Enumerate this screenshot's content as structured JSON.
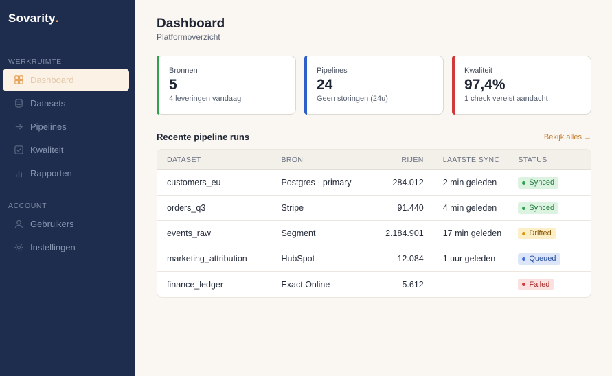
{
  "brand": {
    "name": "Sovarity",
    "dot": "."
  },
  "sidebar": {
    "sections": [
      {
        "label": "WERKRUIMTE"
      },
      {
        "label": "ACCOUNT"
      }
    ],
    "items": [
      {
        "label": "Dashboard",
        "icon": "grid-icon",
        "active": true
      },
      {
        "label": "Datasets",
        "icon": "database-icon"
      },
      {
        "label": "Pipelines",
        "icon": "arrow-right-icon"
      },
      {
        "label": "Kwaliteit",
        "icon": "check-square-icon"
      },
      {
        "label": "Rapporten",
        "icon": "bar-chart-icon"
      },
      {
        "label": "Gebruikers",
        "icon": "user-icon"
      },
      {
        "label": "Instellingen",
        "icon": "gear-icon"
      }
    ]
  },
  "header": {
    "title": "Dashboard",
    "subtitle": "Platformoverzicht"
  },
  "cards": [
    {
      "label": "Bronnen",
      "value": "5",
      "sub": "4 leveringen vandaag",
      "accent": "#2fa14f"
    },
    {
      "label": "Pipelines",
      "value": "24",
      "sub": "Geen storingen (24u)",
      "accent": "#2f5fc9"
    },
    {
      "label": "Kwaliteit",
      "value": "97,4%",
      "sub": "1 check vereist aandacht",
      "accent": "#d03a3a"
    }
  ],
  "runs": {
    "title": "Recente pipeline runs",
    "view_all": "Bekijk alles →",
    "columns": [
      "DATASET",
      "BRON",
      "RIJEN",
      "LAATSTE SYNC",
      "STATUS"
    ],
    "rows": [
      {
        "dataset": "customers_eu",
        "source": "Postgres · primary",
        "rows": "284.012",
        "last_sync": "2 min geleden",
        "status": "Synced"
      },
      {
        "dataset": "orders_q3",
        "source": "Stripe",
        "rows": "91.440",
        "last_sync": "4 min geleden",
        "status": "Synced"
      },
      {
        "dataset": "events_raw",
        "source": "Segment",
        "rows": "2.184.901",
        "last_sync": "17 min geleden",
        "status": "Drifted"
      },
      {
        "dataset": "marketing_attribution",
        "source": "HubSpot",
        "rows": "12.084",
        "last_sync": "1 uur geleden",
        "status": "Queued"
      },
      {
        "dataset": "finance_ledger",
        "source": "Exact Online",
        "rows": "5.612",
        "last_sync": "—",
        "status": "Failed"
      }
    ]
  },
  "status_colors": {
    "Synced": {
      "bg": "#dcf3e2",
      "fg": "#1f7a3a",
      "dot": "#2fa14f"
    },
    "Drifted": {
      "bg": "#fcefc8",
      "fg": "#8a5a07",
      "dot": "#d89a14"
    },
    "Queued": {
      "bg": "#dde6f8",
      "fg": "#2a4f9c",
      "dot": "#3c6fd6"
    },
    "Failed": {
      "bg": "#fbe0e0",
      "fg": "#a32b2b",
      "dot": "#d03a3a"
    }
  }
}
